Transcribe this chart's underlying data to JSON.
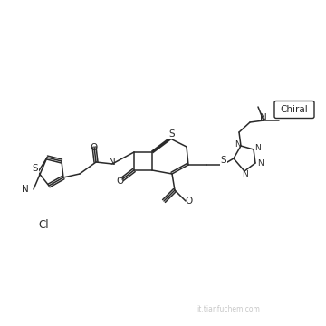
{
  "bg_color": "#ffffff",
  "line_color": "#2a2a2a",
  "text_color": "#2a2a2a",
  "watermark_text": "it.tianfuchem.com",
  "watermark_color": "#c8c8c8",
  "chiral_label": "Chiral",
  "cl_label": "Cl",
  "figsize": [
    3.6,
    3.6
  ],
  "dpi": 100,
  "lw": 1.1
}
